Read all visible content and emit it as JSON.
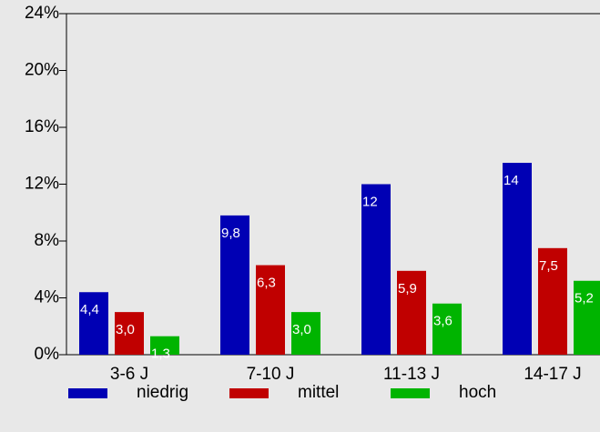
{
  "chart_data": {
    "type": "bar",
    "categories": [
      "3-6 J",
      "7-10 J",
      "11-13 J",
      "14-17 J"
    ],
    "series": [
      {
        "name": "niedrig",
        "color": "#0000b4",
        "values": [
          4.4,
          9.8,
          12,
          13.5
        ],
        "value_labels": [
          "4,4",
          "9,8",
          "12",
          "14"
        ]
      },
      {
        "name": "mittel",
        "color": "#c00000",
        "values": [
          3.0,
          6.3,
          5.9,
          7.5
        ],
        "value_labels": [
          "3,0",
          "6,3",
          "5,9",
          "7,5"
        ]
      },
      {
        "name": "hoch",
        "color": "#00b400",
        "values": [
          1.3,
          3.0,
          3.6,
          5.2
        ],
        "value_labels": [
          "1,3",
          "3,0",
          "3,6",
          "5,2"
        ]
      }
    ],
    "ylim": [
      0,
      24
    ],
    "yticks": [
      {
        "value": 0,
        "label": "0%"
      },
      {
        "value": 4,
        "label": "4%"
      },
      {
        "value": 8,
        "label": "8%"
      },
      {
        "value": 12,
        "label": "12%"
      },
      {
        "value": 16,
        "label": "16%"
      },
      {
        "value": 20,
        "label": "20%"
      },
      {
        "value": 24,
        "label": "24%"
      }
    ],
    "grid": false,
    "legend": "bottom"
  }
}
